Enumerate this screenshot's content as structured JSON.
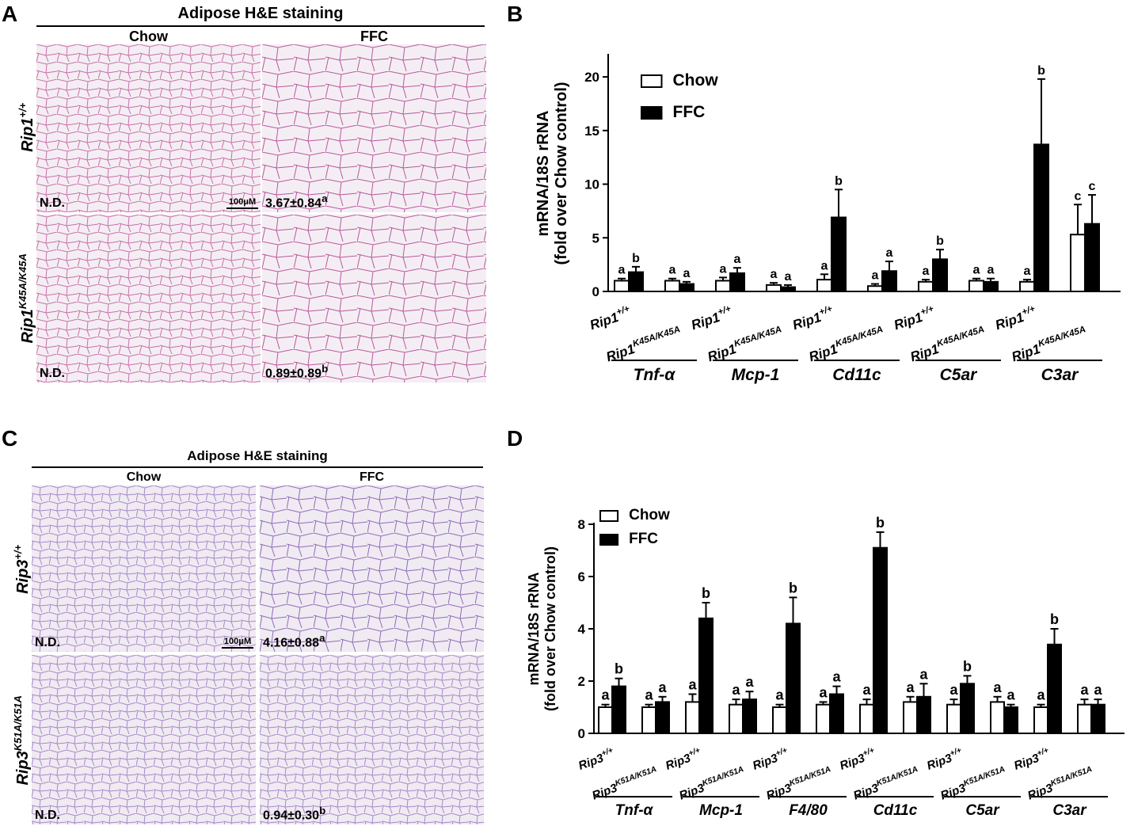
{
  "panel_letters": {
    "a": "A",
    "b": "B",
    "c": "C",
    "d": "D"
  },
  "panel_a": {
    "title": "Adipose H&E staining",
    "col_chow": "Chow",
    "col_ffc": "FFC",
    "row1_gene": "Rip1",
    "row1_sup": "+/+",
    "row2_gene": "Rip1",
    "row2_sup": "K45A/K45A",
    "r1c1_value": "N.D.",
    "r1c2_value": "3.67±0.84",
    "r1c2_sup": "a",
    "r2c1_value": "N.D.",
    "r2c2_value": "0.89±0.89",
    "r2c2_sup": "b",
    "scale_label": "100μM"
  },
  "panel_c": {
    "title": "Adipose H&E staining",
    "col_chow": "Chow",
    "col_ffc": "FFC",
    "row1_gene": "Rip3",
    "row1_sup": "+/+",
    "row2_gene": "Rip3",
    "row2_sup": "K51A/K51A",
    "r1c1_value": "N.D.",
    "r1c2_value": "4.16±0.88",
    "r1c2_sup": "a",
    "r2c1_value": "N.D.",
    "r2c2_value": "0.94±0.30",
    "r2c2_sup": "b",
    "scale_label": "100μM"
  },
  "chart_data": [
    {
      "type": "bar",
      "panel": "B",
      "ylabel": "mRNA/18S rRNA\n(fold over Chow control)",
      "ylim": [
        0,
        22
      ],
      "yticks": [
        0,
        5,
        10,
        15,
        20
      ],
      "legend": [
        "Chow",
        "FFC"
      ],
      "legend_position": "top-left",
      "genotype_gene": "Rip1",
      "genotypes": [
        "+/+",
        "K45A/K45A"
      ],
      "genes": [
        "Tnf-α",
        "Mcp-1",
        "Cd11c",
        "C5ar",
        "C3ar"
      ],
      "series": [
        {
          "name": "Chow",
          "color": "#ffffff",
          "values": [
            1.0,
            1.0,
            1.0,
            0.6,
            1.1,
            0.5,
            0.9,
            1.0,
            0.9,
            5.3
          ],
          "errors": [
            0.2,
            0.2,
            0.3,
            0.2,
            0.5,
            0.2,
            0.2,
            0.2,
            0.2,
            2.8
          ],
          "letters": [
            "a",
            "a",
            "a",
            "a",
            "a",
            "a",
            "a",
            "a",
            "a",
            "c"
          ]
        },
        {
          "name": "FFC",
          "color": "#000000",
          "values": [
            1.8,
            0.7,
            1.7,
            0.4,
            6.9,
            1.9,
            3.0,
            0.9,
            13.7,
            6.3
          ],
          "errors": [
            0.5,
            0.2,
            0.5,
            0.2,
            2.6,
            0.9,
            0.9,
            0.3,
            6.1,
            2.7
          ],
          "letters": [
            "b",
            "a",
            "a",
            "a",
            "b",
            "a",
            "b",
            "a",
            "b",
            "c"
          ]
        }
      ]
    },
    {
      "type": "bar",
      "panel": "D",
      "ylabel": "mRNA/18S rRNA\n(fold over Chow control)",
      "ylim": [
        0,
        8
      ],
      "yticks": [
        0,
        2,
        4,
        6,
        8
      ],
      "legend": [
        "Chow",
        "FFC"
      ],
      "legend_position": "top-left",
      "genotype_gene": "Rip3",
      "genotypes": [
        "+/+",
        "K51A/K51A"
      ],
      "genes": [
        "Tnf-α",
        "Mcp-1",
        "F4/80",
        "Cd11c",
        "C5ar",
        "C3ar"
      ],
      "series": [
        {
          "name": "Chow",
          "color": "#ffffff",
          "values": [
            1.0,
            1.0,
            1.2,
            1.1,
            1.0,
            1.1,
            1.1,
            1.2,
            1.1,
            1.2,
            1.0,
            1.1
          ],
          "errors": [
            0.1,
            0.1,
            0.3,
            0.2,
            0.1,
            0.1,
            0.2,
            0.2,
            0.2,
            0.2,
            0.1,
            0.2
          ],
          "letters": [
            "a",
            "a",
            "a",
            "a",
            "a",
            "a",
            "a",
            "a",
            "a",
            "a",
            "a",
            "a"
          ]
        },
        {
          "name": "FFC",
          "color": "#000000",
          "values": [
            1.8,
            1.2,
            4.4,
            1.3,
            4.2,
            1.5,
            7.1,
            1.4,
            1.9,
            1.0,
            3.4,
            1.1
          ],
          "errors": [
            0.3,
            0.2,
            0.6,
            0.3,
            1.0,
            0.3,
            0.6,
            0.5,
            0.3,
            0.1,
            0.6,
            0.2
          ],
          "letters": [
            "b",
            "a",
            "b",
            "a",
            "b",
            "a",
            "b",
            "a",
            "b",
            "a",
            "b",
            "a"
          ]
        }
      ]
    }
  ]
}
